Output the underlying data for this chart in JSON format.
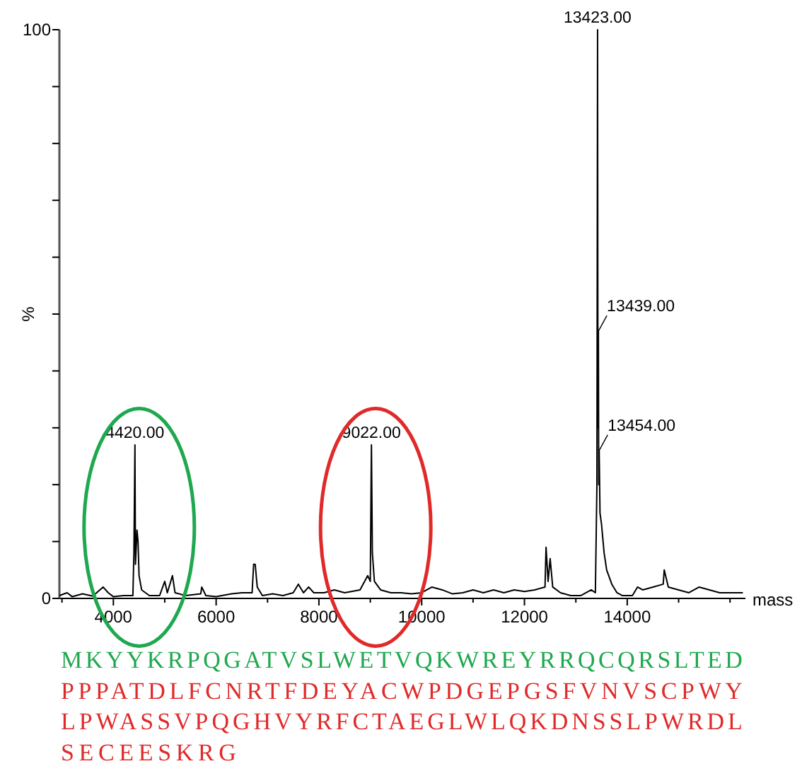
{
  "chart_data": {
    "type": "line",
    "xlabel": "mass",
    "ylabel": "%",
    "xlim": [
      2950,
      16300
    ],
    "xticks": [
      {
        "value": 3000,
        "label": null
      },
      4000,
      {
        "value": 5000,
        "label": null
      },
      6000,
      {
        "value": 7000,
        "label": null
      },
      8000,
      {
        "value": 9000,
        "label": null
      },
      10000,
      {
        "value": 11000,
        "label": null
      },
      12000,
      {
        "value": 13000,
        "label": null
      },
      14000,
      {
        "value": 15000,
        "label": null
      },
      {
        "value": 16000,
        "label": null
      }
    ],
    "ylim": [
      0,
      100
    ],
    "yticks": [
      0,
      {
        "value": 10,
        "label": null
      },
      {
        "value": 20,
        "label": null
      },
      {
        "value": 30,
        "label": null
      },
      {
        "value": 40,
        "label": null
      },
      {
        "value": 50,
        "label": null
      },
      {
        "value": 60,
        "label": null
      },
      {
        "value": 70,
        "label": null
      },
      {
        "value": 80,
        "label": null
      },
      {
        "value": 90,
        "label": null
      },
      100
    ],
    "grid": false,
    "line_style": "solid",
    "series": [
      {
        "color": "#000000",
        "x": [
          2950,
          3100,
          3200,
          3400,
          3600,
          3800,
          3900,
          4000,
          4200,
          4380,
          4400,
          4420,
          4430,
          4460,
          4480,
          4500,
          4550,
          4700,
          4900,
          5000,
          5050,
          5150,
          5200,
          5400,
          5700,
          5720,
          5800,
          6000,
          6300,
          6500,
          6700,
          6730,
          6760,
          6800,
          6900,
          7100,
          7300,
          7500,
          7600,
          7700,
          7800,
          7900,
          8100,
          8300,
          8500,
          8800,
          8950,
          9000,
          9022,
          9040,
          9080,
          9200,
          9400,
          9600,
          9800,
          10000,
          10200,
          10400,
          10600,
          10800,
          11000,
          11200,
          11400,
          11600,
          11800,
          12000,
          12200,
          12400,
          12420,
          12460,
          12500,
          12550,
          12700,
          12900,
          13100,
          13300,
          13380,
          13410,
          13423,
          13430,
          13439,
          13445,
          13454,
          13470,
          13500,
          13550,
          13600,
          13700,
          13800,
          13900,
          14100,
          14200,
          14300,
          14500,
          14700,
          14720,
          14800,
          15000,
          15200,
          15400,
          15600,
          15800,
          16000,
          16250
        ],
        "values": [
          0.5,
          1,
          0.3,
          0.8,
          0.4,
          2,
          1,
          0.3,
          0.5,
          0.5,
          8,
          27,
          6,
          12,
          10,
          4,
          1.5,
          0.5,
          0.5,
          3,
          1,
          4,
          1,
          0.5,
          0.8,
          2,
          0.5,
          0.3,
          0.8,
          1,
          1,
          6,
          6,
          2,
          0.5,
          0.8,
          0.5,
          1,
          2.5,
          1,
          2,
          1,
          1,
          1.5,
          1,
          1.5,
          4,
          3,
          27,
          8,
          3,
          1.5,
          1,
          1,
          0.8,
          1,
          2,
          1.5,
          0.8,
          1,
          1.5,
          1,
          1.5,
          1,
          1.5,
          1.2,
          1.5,
          2,
          9,
          3,
          7,
          2,
          1,
          0.5,
          0.5,
          1.5,
          1,
          20,
          100,
          30,
          47,
          20,
          26,
          15,
          13,
          8,
          5,
          2.5,
          1,
          0.5,
          0.5,
          2,
          1.5,
          2,
          2.5,
          5,
          2,
          1.5,
          1,
          2,
          1.5,
          1,
          1,
          1
        ]
      }
    ],
    "annotations": [
      {
        "text": "13423.00",
        "x": 13423,
        "y": 100
      },
      {
        "text": "13439.00",
        "x": 13439,
        "y": 47
      },
      {
        "text": "13454.00",
        "x": 13454,
        "y": 26
      },
      {
        "text": "4420.00",
        "x": 4420,
        "y": 27
      },
      {
        "text": "9022.00",
        "x": 9022,
        "y": 27
      },
      "MKYYKRPQGATVSLWETVQKWREYRRQCQRSLTED",
      "PPPATDLFCNRTFDEYACWPDGEPGSFVNVSCPWY",
      "LPWASSVPQGHVYRFCTAEGLWLQKDNSSLPWRDL",
      "SECEESKRG"
    ]
  }
}
